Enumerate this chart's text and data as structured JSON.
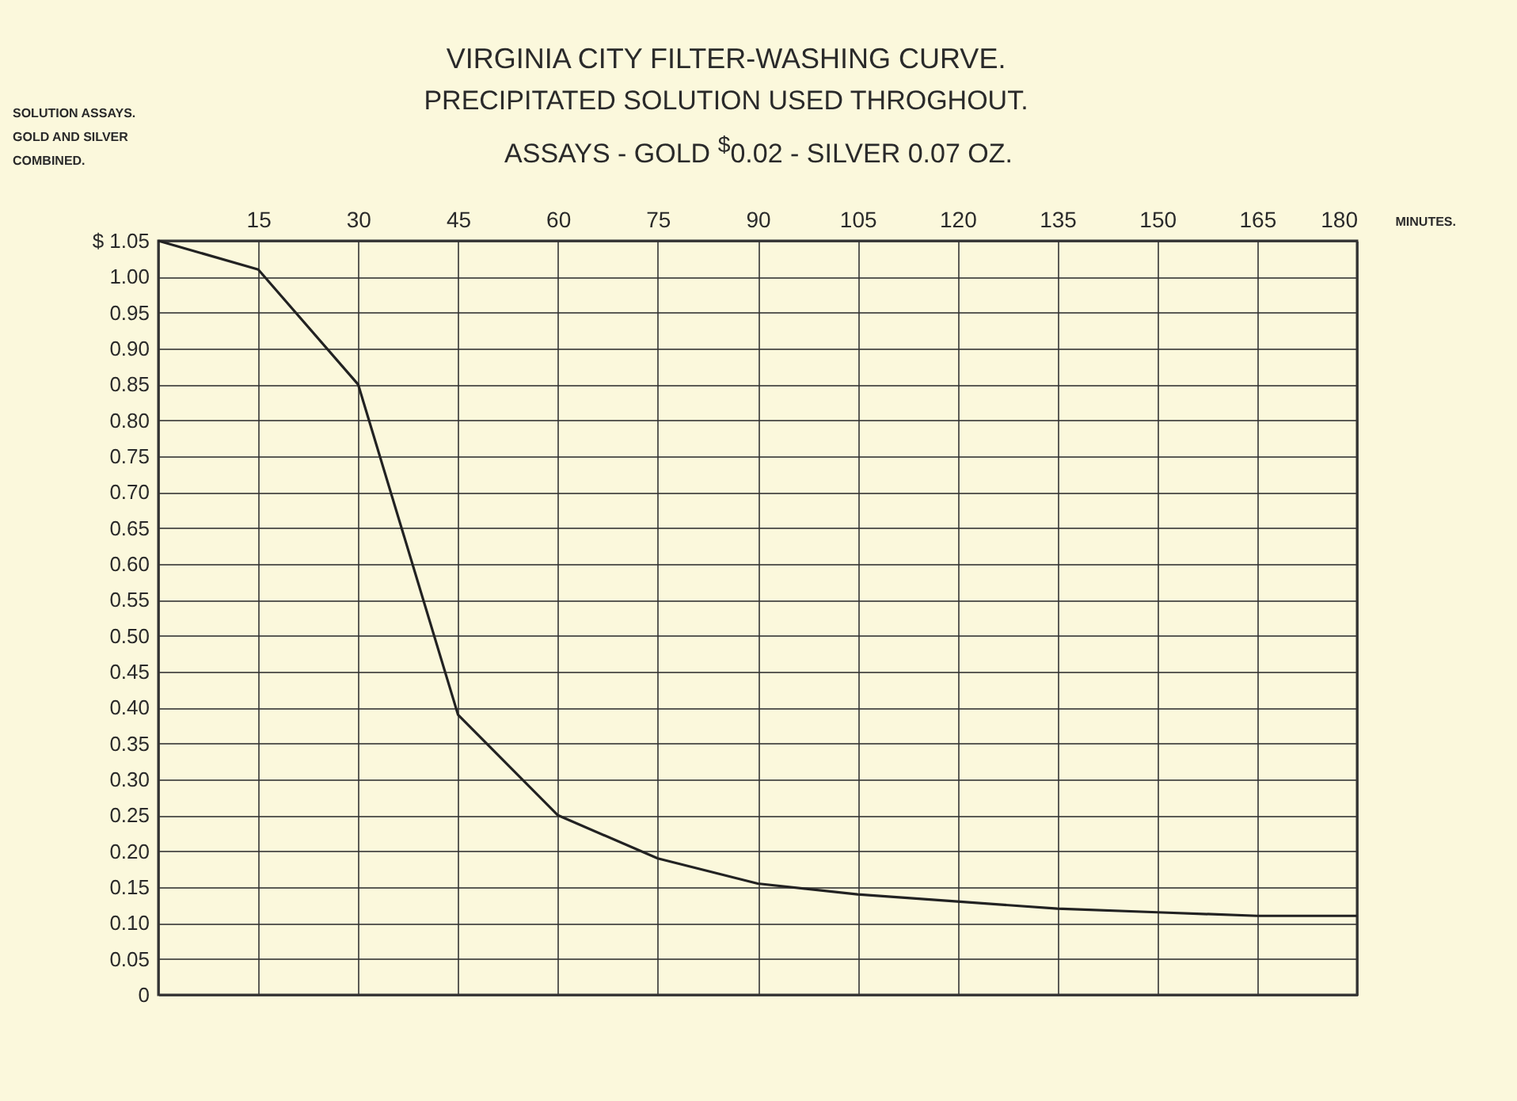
{
  "chart_data": {
    "type": "line",
    "title": "VIRGINIA CITY FILTER-WASHING CURVE.",
    "subtitle": "PRECIPITATED SOLUTION USED THROGHOUT.",
    "annotations": [
      "ASSAYS - GOLD $^{$}$0.02 - SILVER 0.07 OZ."
    ],
    "xlabel": "MINUTES.",
    "ylabel": "SOLUTION ASSAYS. GOLD AND SILVER COMBINED.",
    "x": [
      0,
      15,
      30,
      45,
      60,
      75,
      90,
      105,
      120,
      135,
      150,
      165,
      180
    ],
    "series": [
      {
        "color": "#222222",
        "values": [
          1.05,
          1.01,
          0.85,
          0.39,
          0.25,
          0.19,
          0.155,
          0.14,
          0.13,
          0.12,
          0.115,
          0.11,
          0.11
        ]
      }
    ],
    "xlim": [
      0,
      180
    ],
    "xticks": [
      {
        "value": 0,
        "label": null
      },
      15,
      30,
      45,
      60,
      75,
      90,
      105,
      120,
      135,
      150,
      165,
      180
    ],
    "ylim": [
      0,
      1.05
    ],
    "yticks": [
      {
        "value": 0,
        "label": "0"
      },
      {
        "value": 0.05,
        "label": "0.05"
      },
      {
        "value": 0.1,
        "label": "0.10"
      },
      {
        "value": 0.15,
        "label": "0.15"
      },
      {
        "value": 0.2,
        "label": "0.20"
      },
      {
        "value": 0.25,
        "label": "0.25"
      },
      {
        "value": 0.3,
        "label": "0.30"
      },
      {
        "value": 0.35,
        "label": "0.35"
      },
      {
        "value": 0.4,
        "label": "0.40"
      },
      {
        "value": 0.45,
        "label": "0.45"
      },
      {
        "value": 0.5,
        "label": "0.50"
      },
      {
        "value": 0.55,
        "label": "0.55"
      },
      {
        "value": 0.6,
        "label": "0.60"
      },
      {
        "value": 0.65,
        "label": "0.65"
      },
      {
        "value": 0.7,
        "label": "0.70"
      },
      {
        "value": 0.75,
        "label": "0.75"
      },
      {
        "value": 0.8,
        "label": "0.80"
      },
      {
        "value": 0.85,
        "label": "0.85"
      },
      {
        "value": 0.9,
        "label": "0.90"
      },
      {
        "value": 0.95,
        "label": "0.95"
      },
      {
        "value": 1,
        "label": "1.00"
      },
      {
        "value": 1.05,
        "label": "$ 1.05"
      }
    ],
    "grid": true
  }
}
